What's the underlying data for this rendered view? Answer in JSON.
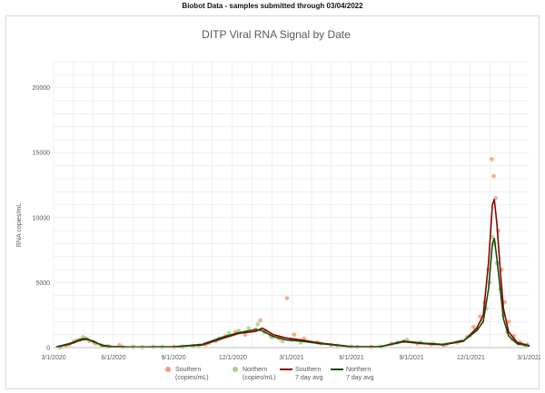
{
  "header": {
    "caption": "Biobot Data - samples submitted through 03/04/2022"
  },
  "colors": {
    "southern_points": "#f0a078",
    "northern_points": "#a9cf86",
    "southern_avg": "#8b0000",
    "northern_avg": "#1a4a0a",
    "grid": "#e6e6e6"
  },
  "chart_data": {
    "type": "scatter",
    "title": "DITP Viral RNA Signal by Date",
    "ylabel": "RNA copies/mL",
    "xlabel": "",
    "xlim": [
      "2020-03-01",
      "2022-03-01"
    ],
    "ylim": [
      0,
      22000
    ],
    "yticks": [
      0,
      5000,
      10000,
      15000,
      20000
    ],
    "xtick_labels": [
      "3/1/2020",
      "6/1/2020",
      "9/1/2020",
      "12/1/2020",
      "3/1/2021",
      "6/1/2021",
      "9/1/2021",
      "12/1/2021",
      "3/1/2022"
    ],
    "xtick_dates": [
      "2020-03-01",
      "2020-06-01",
      "2020-09-01",
      "2020-12-01",
      "2021-03-01",
      "2021-06-01",
      "2021-09-01",
      "2021-12-01",
      "2022-03-01"
    ],
    "grid": true,
    "legend_position": "bottom",
    "legend": [
      {
        "label_line1": "Southern",
        "label_line2": "(copies/mL)",
        "kind": "points",
        "color": "#f0a078"
      },
      {
        "label_line1": "Northern",
        "label_line2": "(copies/mL)",
        "kind": "points",
        "color": "#a9cf86"
      },
      {
        "label_line1": "Southern",
        "label_line2": "7 day avg",
        "kind": "line",
        "color": "#8b0000"
      },
      {
        "label_line1": "Northern",
        "label_line2": "7 day avg",
        "kind": "line",
        "color": "#1a4a0a"
      }
    ],
    "series": [
      {
        "name": "Southern (copies/mL)",
        "kind": "points",
        "points": [
          [
            "2020-03-10",
            20
          ],
          [
            "2020-03-20",
            150
          ],
          [
            "2020-04-01",
            450
          ],
          [
            "2020-04-10",
            600
          ],
          [
            "2020-04-18",
            700
          ],
          [
            "2020-04-25",
            500
          ],
          [
            "2020-05-05",
            300
          ],
          [
            "2020-05-15",
            150
          ],
          [
            "2020-05-25",
            80
          ],
          [
            "2020-06-10",
            200
          ],
          [
            "2020-07-01",
            60
          ],
          [
            "2020-08-01",
            50
          ],
          [
            "2020-09-01",
            60
          ],
          [
            "2020-10-01",
            120
          ],
          [
            "2020-10-20",
            250
          ],
          [
            "2020-11-05",
            500
          ],
          [
            "2020-11-20",
            900
          ],
          [
            "2020-12-05",
            1200
          ],
          [
            "2020-12-20",
            1000
          ],
          [
            "2021-01-05",
            1400
          ],
          [
            "2021-01-12",
            2100
          ],
          [
            "2021-01-20",
            1300
          ],
          [
            "2021-01-28",
            900
          ],
          [
            "2021-02-10",
            700
          ],
          [
            "2021-02-22",
            3800
          ],
          [
            "2021-03-05",
            1000
          ],
          [
            "2021-03-20",
            700
          ],
          [
            "2021-04-10",
            400
          ],
          [
            "2021-05-01",
            200
          ],
          [
            "2021-06-01",
            80
          ],
          [
            "2021-07-01",
            60
          ],
          [
            "2021-08-01",
            300
          ],
          [
            "2021-08-20",
            500
          ],
          [
            "2021-09-10",
            300
          ],
          [
            "2021-10-01",
            250
          ],
          [
            "2021-10-20",
            200
          ],
          [
            "2021-11-10",
            400
          ],
          [
            "2021-11-25",
            800
          ],
          [
            "2021-12-05",
            1600
          ],
          [
            "2021-12-15",
            2400
          ],
          [
            "2021-12-22",
            3500
          ],
          [
            "2021-12-28",
            6000
          ],
          [
            "2022-01-02",
            14500
          ],
          [
            "2022-01-05",
            13200
          ],
          [
            "2022-01-08",
            11500
          ],
          [
            "2022-01-12",
            9000
          ],
          [
            "2022-01-17",
            6000
          ],
          [
            "2022-01-22",
            3500
          ],
          [
            "2022-01-28",
            2000
          ],
          [
            "2022-02-05",
            900
          ],
          [
            "2022-02-15",
            400
          ],
          [
            "2022-02-25",
            250
          ]
        ]
      },
      {
        "name": "Northern (copies/mL)",
        "kind": "points",
        "points": [
          [
            "2020-03-12",
            50
          ],
          [
            "2020-03-25",
            250
          ],
          [
            "2020-04-05",
            550
          ],
          [
            "2020-04-15",
            800
          ],
          [
            "2020-04-22",
            650
          ],
          [
            "2020-05-02",
            400
          ],
          [
            "2020-05-12",
            200
          ],
          [
            "2020-05-22",
            100
          ],
          [
            "2020-06-15",
            60
          ],
          [
            "2020-07-15",
            40
          ],
          [
            "2020-08-15",
            50
          ],
          [
            "2020-09-15",
            70
          ],
          [
            "2020-10-10",
            150
          ],
          [
            "2020-10-25",
            350
          ],
          [
            "2020-11-10",
            700
          ],
          [
            "2020-11-25",
            1100
          ],
          [
            "2020-12-10",
            1300
          ],
          [
            "2020-12-25",
            1500
          ],
          [
            "2021-01-08",
            1800
          ],
          [
            "2021-01-18",
            1200
          ],
          [
            "2021-01-30",
            800
          ],
          [
            "2021-02-15",
            500
          ],
          [
            "2021-03-01",
            600
          ],
          [
            "2021-03-15",
            400
          ],
          [
            "2021-04-15",
            300
          ],
          [
            "2021-05-10",
            150
          ],
          [
            "2021-06-10",
            60
          ],
          [
            "2021-07-15",
            80
          ],
          [
            "2021-08-10",
            400
          ],
          [
            "2021-08-25",
            600
          ],
          [
            "2021-09-15",
            400
          ],
          [
            "2021-10-05",
            300
          ],
          [
            "2021-10-25",
            250
          ],
          [
            "2021-11-15",
            500
          ],
          [
            "2021-11-30",
            900
          ],
          [
            "2021-12-08",
            1400
          ],
          [
            "2021-12-18",
            2000
          ],
          [
            "2021-12-25",
            3000
          ],
          [
            "2021-12-30",
            5000
          ],
          [
            "2022-01-03",
            8500
          ],
          [
            "2022-01-06",
            8000
          ],
          [
            "2022-01-10",
            6500
          ],
          [
            "2022-01-15",
            4500
          ],
          [
            "2022-01-20",
            2500
          ],
          [
            "2022-01-26",
            1200
          ],
          [
            "2022-02-03",
            600
          ],
          [
            "2022-02-12",
            300
          ],
          [
            "2022-02-22",
            150
          ]
        ]
      },
      {
        "name": "Southern 7 day avg",
        "kind": "line",
        "points": [
          [
            "2020-03-05",
            50
          ],
          [
            "2020-03-25",
            250
          ],
          [
            "2020-04-10",
            550
          ],
          [
            "2020-04-20",
            650
          ],
          [
            "2020-05-01",
            500
          ],
          [
            "2020-05-15",
            150
          ],
          [
            "2020-06-01",
            80
          ],
          [
            "2020-07-01",
            50
          ],
          [
            "2020-09-01",
            60
          ],
          [
            "2020-10-15",
            200
          ],
          [
            "2020-11-15",
            700
          ],
          [
            "2020-12-10",
            1100
          ],
          [
            "2021-01-05",
            1250
          ],
          [
            "2021-01-15",
            1500
          ],
          [
            "2021-02-01",
            1000
          ],
          [
            "2021-02-20",
            750
          ],
          [
            "2021-03-15",
            600
          ],
          [
            "2021-04-15",
            350
          ],
          [
            "2021-06-01",
            80
          ],
          [
            "2021-07-15",
            70
          ],
          [
            "2021-08-20",
            450
          ],
          [
            "2021-09-20",
            300
          ],
          [
            "2021-10-20",
            220
          ],
          [
            "2021-11-20",
            500
          ],
          [
            "2021-12-10",
            1500
          ],
          [
            "2021-12-20",
            2500
          ],
          [
            "2021-12-28",
            6500
          ],
          [
            "2022-01-03",
            11000
          ],
          [
            "2022-01-06",
            11400
          ],
          [
            "2022-01-10",
            9500
          ],
          [
            "2022-01-15",
            6000
          ],
          [
            "2022-01-20",
            3000
          ],
          [
            "2022-01-28",
            1200
          ],
          [
            "2022-02-10",
            400
          ],
          [
            "2022-03-01",
            150
          ]
        ]
      },
      {
        "name": "Northern 7 day avg",
        "kind": "line",
        "points": [
          [
            "2020-03-05",
            60
          ],
          [
            "2020-03-25",
            300
          ],
          [
            "2020-04-12",
            650
          ],
          [
            "2020-04-20",
            700
          ],
          [
            "2020-05-01",
            450
          ],
          [
            "2020-05-15",
            180
          ],
          [
            "2020-06-01",
            70
          ],
          [
            "2020-07-01",
            40
          ],
          [
            "2020-09-01",
            60
          ],
          [
            "2020-10-15",
            250
          ],
          [
            "2020-11-15",
            800
          ],
          [
            "2020-12-10",
            1150
          ],
          [
            "2021-01-05",
            1400
          ],
          [
            "2021-01-15",
            1300
          ],
          [
            "2021-02-01",
            850
          ],
          [
            "2021-02-20",
            600
          ],
          [
            "2021-03-15",
            500
          ],
          [
            "2021-04-15",
            300
          ],
          [
            "2021-06-01",
            70
          ],
          [
            "2021-07-15",
            80
          ],
          [
            "2021-08-20",
            500
          ],
          [
            "2021-09-20",
            350
          ],
          [
            "2021-10-20",
            250
          ],
          [
            "2021-11-20",
            550
          ],
          [
            "2021-12-10",
            1300
          ],
          [
            "2021-12-20",
            2000
          ],
          [
            "2021-12-28",
            4500
          ],
          [
            "2022-01-03",
            8000
          ],
          [
            "2022-01-06",
            8400
          ],
          [
            "2022-01-10",
            6800
          ],
          [
            "2022-01-15",
            4500
          ],
          [
            "2022-01-20",
            2200
          ],
          [
            "2022-01-28",
            900
          ],
          [
            "2022-02-10",
            300
          ],
          [
            "2022-03-01",
            120
          ]
        ]
      }
    ]
  }
}
